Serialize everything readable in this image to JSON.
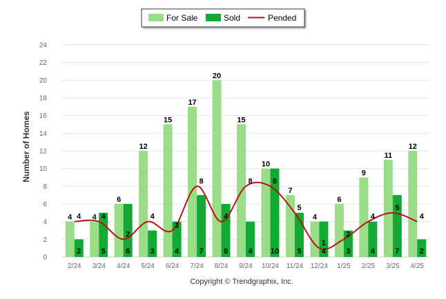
{
  "chart_data": {
    "type": "bar",
    "title": "",
    "xlabel": "",
    "ylabel": "Number of Homes",
    "ylim": [
      0,
      24
    ],
    "yticks": [
      0,
      2,
      4,
      6,
      8,
      10,
      12,
      14,
      16,
      18,
      20,
      22,
      24
    ],
    "grid": true,
    "legend_position": "top-center",
    "categories": [
      "2/24",
      "3/24",
      "4/24",
      "5/24",
      "6/24",
      "7/24",
      "8/24",
      "9/24",
      "10/24",
      "11/24",
      "12/24",
      "1/25",
      "2/25",
      "3/25",
      "4/25"
    ],
    "series": [
      {
        "name": "For Sale",
        "type": "bar",
        "color": "#99dd88",
        "values": [
          4,
          4,
          6,
          12,
          15,
          17,
          20,
          15,
          10,
          7,
          4,
          6,
          9,
          11,
          12
        ]
      },
      {
        "name": "Sold",
        "type": "bar",
        "color": "#11aa33",
        "values": [
          2,
          5,
          6,
          3,
          4,
          7,
          6,
          4,
          10,
          5,
          4,
          3,
          4,
          7,
          2
        ]
      },
      {
        "name": "Pended",
        "type": "line",
        "color": "#bb1111",
        "values": [
          4,
          4,
          2,
          4,
          3,
          8,
          4,
          8,
          8,
          5,
          1,
          2,
          4,
          5,
          4
        ]
      }
    ]
  },
  "footer": {
    "copyright": "Copyright © Trendgraphix, Inc."
  }
}
